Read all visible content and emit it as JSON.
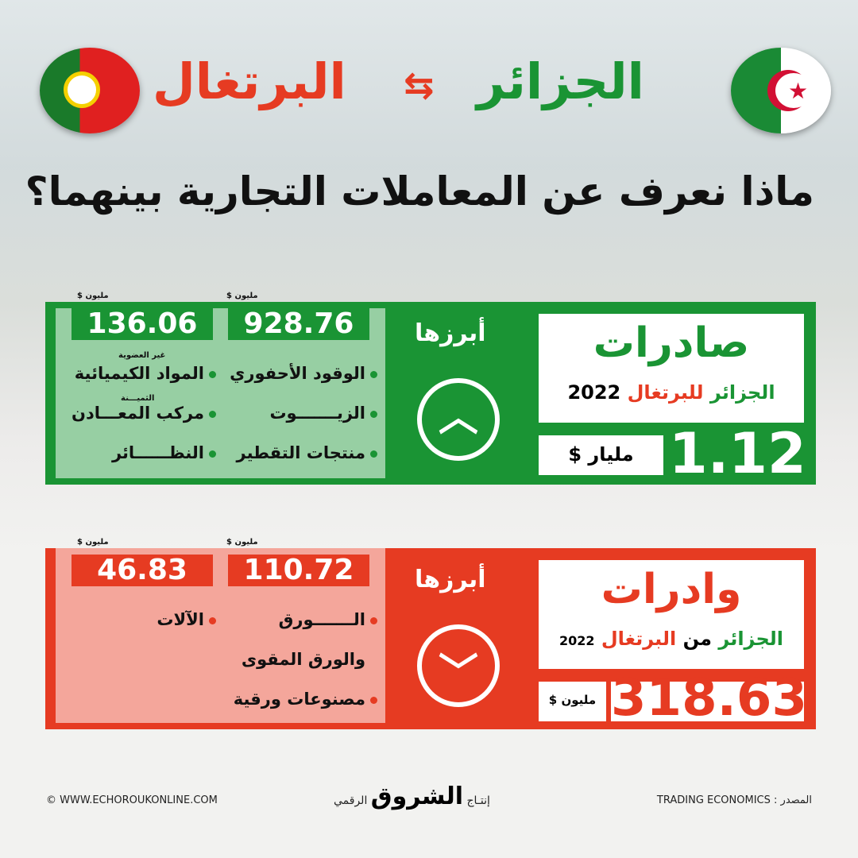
{
  "header": {
    "country_right": "الجزائر",
    "country_left": "البرتغال",
    "question": "ماذا نعرف عن المعاملات التجارية بينهما؟"
  },
  "colors": {
    "green": "#1a9434",
    "red": "#e63b22"
  },
  "exports": {
    "title": "صادرات",
    "from": "الجزائر",
    "to": "للبرتغال",
    "year": "2022",
    "total": "1.12",
    "total_unit": "مليار $",
    "highlight": "أبرزها",
    "icon": "chevron-up-icon",
    "values": [
      {
        "unit": "مليون $",
        "value": "928.76"
      },
      {
        "unit": "مليون $",
        "value": "136.06"
      }
    ],
    "items_col1": [
      "الوقود الأحفوري",
      "الزيـــــــوت",
      "منتجات التقطير"
    ],
    "items_col2": [
      "المواد الكيميائية",
      "مركب المعـــادن",
      "النظــــــائر"
    ],
    "notes": [
      "غير العضوية",
      "الثميـــنة"
    ]
  },
  "imports": {
    "title": "وادرات",
    "from": "الجزائر",
    "mid": "من",
    "to": "البرتغال",
    "year": "2022",
    "total": "318.63",
    "total_unit": "مليون $",
    "highlight": "أبرزها",
    "icon": "chevron-down-icon",
    "values": [
      {
        "unit": "مليون $",
        "value": "110.72"
      },
      {
        "unit": "مليون $",
        "value": "46.83"
      }
    ],
    "items_col1": [
      "الـــــــورق",
      "والورق المقوى",
      "مصنوعات ورقية"
    ],
    "items_col2": [
      "الآلات"
    ]
  },
  "footer": {
    "copyright": "© WWW.ECHOROUKONLINE.COM",
    "production": "إنتـاج",
    "brand": "الشروق",
    "digital": "الرقمي",
    "source": "المصدر : TRADING ECONOMICS"
  }
}
